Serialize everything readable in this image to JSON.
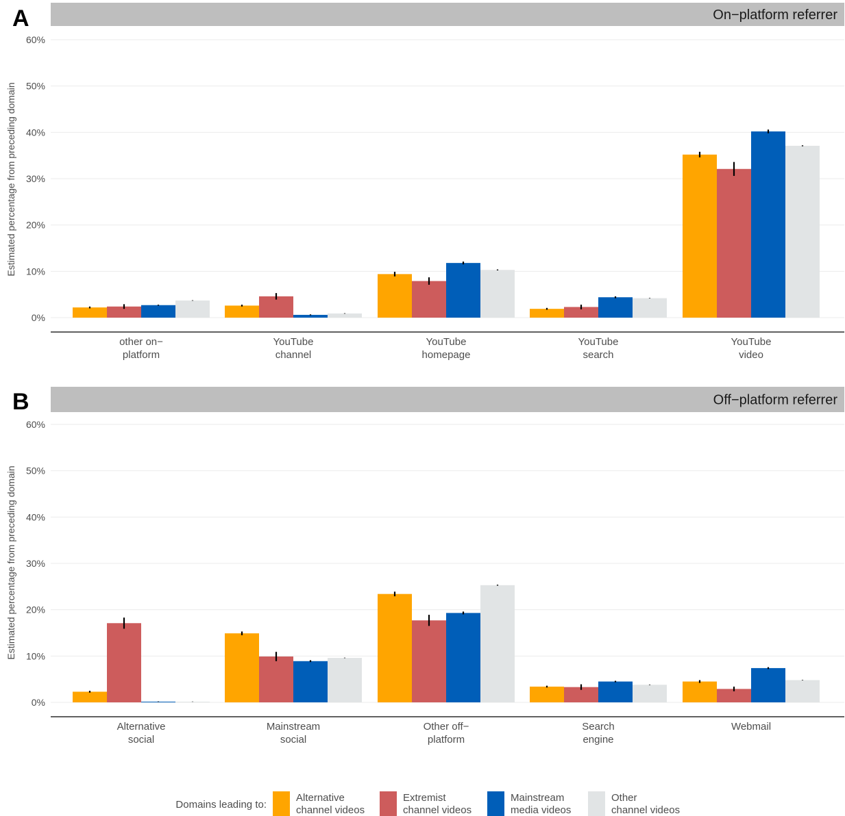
{
  "chart_data": [
    {
      "type": "bar",
      "panel_letter": "A",
      "strip_title": "On−platform referrer",
      "ylabel": "Estimated percentage from preceding domain",
      "ylim": [
        0,
        60
      ],
      "yticks": [
        "0%",
        "10%",
        "20%",
        "30%",
        "40%",
        "50%",
        "60%"
      ],
      "categories": [
        [
          "other on−",
          "platform"
        ],
        [
          "YouTube",
          "channel"
        ],
        [
          "YouTube",
          "homepage"
        ],
        [
          "YouTube",
          "search"
        ],
        [
          "YouTube",
          "video"
        ]
      ],
      "series": [
        {
          "name": "Alternative channel videos",
          "color": "#FFA500",
          "values": [
            2.2,
            2.6,
            9.4,
            1.9,
            35.2
          ],
          "errors": [
            0.2,
            0.2,
            0.5,
            0.2,
            0.6
          ]
        },
        {
          "name": "Extremist channel videos",
          "color": "#CD5C5C",
          "values": [
            2.4,
            4.6,
            7.9,
            2.3,
            32.1
          ],
          "errors": [
            0.5,
            0.7,
            0.8,
            0.5,
            1.5
          ]
        },
        {
          "name": "Mainstream media videos",
          "color": "#005EB8",
          "values": [
            2.7,
            0.6,
            11.8,
            4.4,
            40.2
          ],
          "errors": [
            0.1,
            0.1,
            0.3,
            0.2,
            0.4
          ]
        },
        {
          "name": "Other channel videos",
          "color": "#E1E4E5",
          "values": [
            3.7,
            0.9,
            10.3,
            4.2,
            37.1
          ],
          "errors": [
            0.05,
            0.05,
            0.1,
            0.05,
            0.1
          ]
        }
      ],
      "grid": true
    },
    {
      "type": "bar",
      "panel_letter": "B",
      "strip_title": "Off−platform referrer",
      "ylabel": "Estimated percentage from preceding domain",
      "ylim": [
        0,
        60
      ],
      "yticks": [
        "0%",
        "10%",
        "20%",
        "30%",
        "40%",
        "50%",
        "60%"
      ],
      "categories": [
        [
          "Alternative",
          "social"
        ],
        [
          "Mainstream",
          "social"
        ],
        [
          "Other off−",
          "platform"
        ],
        [
          "Search",
          "engine"
        ],
        [
          "Webmail"
        ]
      ],
      "series": [
        {
          "name": "Alternative channel videos",
          "color": "#FFA500",
          "values": [
            2.3,
            14.9,
            23.4,
            3.4,
            4.5
          ],
          "errors": [
            0.2,
            0.4,
            0.5,
            0.2,
            0.3
          ]
        },
        {
          "name": "Extremist channel videos",
          "color": "#CD5C5C",
          "values": [
            17.1,
            9.9,
            17.7,
            3.3,
            2.9
          ],
          "errors": [
            1.2,
            1.0,
            1.2,
            0.6,
            0.5
          ]
        },
        {
          "name": "Mainstream media videos",
          "color": "#005EB8",
          "values": [
            0.15,
            8.9,
            19.3,
            4.5,
            7.4
          ],
          "errors": [
            0.05,
            0.2,
            0.3,
            0.15,
            0.2
          ]
        },
        {
          "name": "Other channel videos",
          "color": "#E1E4E5",
          "values": [
            0.15,
            9.6,
            25.3,
            3.8,
            4.8
          ],
          "errors": [
            0.03,
            0.05,
            0.1,
            0.05,
            0.05
          ]
        }
      ],
      "grid": true
    }
  ],
  "legend": {
    "title": "Domains leading to:",
    "items": [
      {
        "lines": [
          "Alternative",
          "channel videos"
        ],
        "color": "#FFA500"
      },
      {
        "lines": [
          "Extremist",
          "channel videos"
        ],
        "color": "#CD5C5C"
      },
      {
        "lines": [
          "Mainstream",
          "media videos"
        ],
        "color": "#005EB8"
      },
      {
        "lines": [
          "Other",
          "channel videos"
        ],
        "color": "#E1E4E5"
      }
    ]
  }
}
